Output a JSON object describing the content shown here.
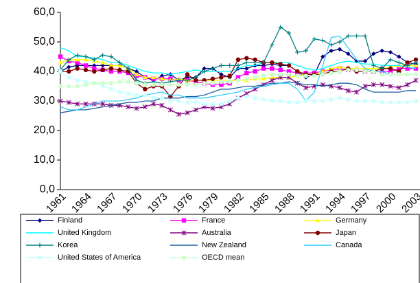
{
  "chart_data": {
    "type": "line",
    "categories": [
      "1961",
      null,
      null,
      "1964",
      null,
      null,
      "1967",
      null,
      null,
      "1970",
      null,
      null,
      "1973",
      null,
      null,
      "1976",
      null,
      null,
      "1979",
      null,
      null,
      "1982",
      null,
      null,
      "1985",
      null,
      null,
      "1988",
      null,
      null,
      "1991",
      null,
      null,
      "1994",
      null,
      null,
      "1997",
      null,
      null,
      "2000",
      null,
      null,
      "2003"
    ],
    "ylim": [
      0,
      60
    ],
    "yticks": [
      {
        "value": 0,
        "label": "0,0"
      },
      {
        "value": 10,
        "label": "10,0"
      },
      {
        "value": 20,
        "label": "20,0"
      },
      {
        "value": 30,
        "label": "30,0"
      },
      {
        "value": 40,
        "label": "40,0"
      },
      {
        "value": 50,
        "label": "50,0"
      },
      {
        "value": 60,
        "label": "60,0"
      }
    ],
    "grid": false,
    "legend": "bottom",
    "series": [
      {
        "name": "Finland",
        "color": "#000080",
        "marker": "diamond",
        "values": [
          40,
          41.5,
          42,
          42,
          42,
          42,
          42,
          42,
          41,
          40,
          38,
          37,
          38.5,
          39,
          37,
          38,
          38,
          41,
          41,
          39,
          38,
          41,
          41,
          42,
          42,
          42.5,
          42,
          42,
          40,
          38,
          39,
          45,
          47,
          47.5,
          46,
          43.5,
          43.5,
          46,
          47,
          46.5,
          45,
          43,
          42.5
        ]
      },
      {
        "name": "France",
        "color": "#ff00ff",
        "marker": "square",
        "values": [
          45,
          43.5,
          43,
          42,
          41,
          40.5,
          40,
          40,
          39.5,
          38.5,
          38,
          37.5,
          37.5,
          37.5,
          37,
          37,
          36.5,
          36,
          35.5,
          35.5,
          36,
          38,
          39.5,
          40,
          41,
          41,
          40.5,
          40,
          39.5,
          39.5,
          39.5,
          40,
          40.5,
          41,
          40.5,
          40.5,
          40,
          40,
          40,
          40,
          41,
          41,
          41
        ]
      },
      {
        "name": "Germany",
        "color": "#ffff00",
        "marker": "triangle",
        "values": [
          43,
          44,
          44,
          44,
          43.5,
          43,
          42,
          42,
          41,
          39,
          38,
          38,
          37.5,
          37,
          37.5,
          37,
          37,
          37,
          37,
          37,
          37,
          37,
          37,
          37.5,
          37.5,
          38,
          38,
          38,
          38.5,
          39,
          39,
          40,
          41,
          41.5,
          41,
          41,
          41,
          41,
          41,
          41.5,
          42,
          42,
          42
        ]
      },
      {
        "name": "United Kingdom",
        "color": "#00ffff",
        "marker": "none",
        "values": [
          48,
          47,
          45,
          45,
          44.5,
          44,
          43,
          43,
          42,
          41,
          40,
          39.5,
          39.5,
          39,
          39.5,
          40,
          40.5,
          40,
          40,
          40,
          40,
          41,
          42,
          42,
          43,
          43,
          43,
          43,
          42,
          41,
          40.5,
          41,
          42,
          43,
          43.5,
          43,
          42.5,
          42.5,
          42,
          42,
          42,
          41.5,
          41
        ]
      },
      {
        "name": "Australia",
        "color": "#800080",
        "marker": "star",
        "values": [
          30,
          29.5,
          29,
          29,
          29,
          29,
          28.5,
          28.5,
          28,
          27.5,
          28,
          29,
          28.5,
          27,
          25.5,
          26,
          27,
          28,
          27.5,
          28,
          29,
          31,
          32.5,
          34,
          35.5,
          37,
          38,
          38,
          36,
          34.5,
          35,
          35.5,
          35,
          34.5,
          33.5,
          33,
          35,
          35.5,
          35.5,
          35,
          34.5,
          35.5,
          37
        ]
      },
      {
        "name": "Japan",
        "color": "#800000",
        "marker": "circle",
        "values": [
          40,
          40,
          41,
          40.5,
          40,
          40.5,
          41,
          40.5,
          40,
          36,
          34,
          35,
          35,
          31.5,
          35,
          39,
          37,
          37,
          37.5,
          38,
          38.5,
          44,
          44.5,
          44,
          43,
          43,
          42.5,
          42,
          40,
          39,
          39,
          39,
          40,
          40,
          41,
          40,
          40,
          40,
          41,
          41,
          40,
          43,
          44
        ]
      },
      {
        "name": "Korea",
        "color": "#008080",
        "marker": "plus",
        "values": [
          40.5,
          44,
          45.5,
          45,
          44,
          45.5,
          45,
          43,
          41,
          37,
          36,
          36.5,
          36,
          36.5,
          37,
          37,
          38,
          40,
          41,
          42,
          42,
          42,
          43,
          43,
          43,
          49,
          55,
          53,
          46.5,
          47,
          51,
          50.5,
          49,
          50,
          52,
          52,
          52,
          42,
          41,
          44,
          43,
          42,
          43
        ]
      },
      {
        "name": "New Zealand",
        "color": "#1f5fa0",
        "marker": "none",
        "values": [
          26,
          26.5,
          27,
          27,
          27.5,
          28,
          28.5,
          29,
          29.5,
          29.5,
          30,
          30,
          31,
          31,
          31,
          31.5,
          31.5,
          32,
          33,
          34,
          34,
          34.5,
          35,
          35,
          35.5,
          36,
          36,
          36.5,
          36,
          35.5,
          35.5,
          35,
          35.5,
          36,
          36,
          35.5,
          34,
          33,
          33,
          33,
          33,
          33.5,
          33.5
        ]
      },
      {
        "name": "Canada",
        "color": "#33ccff",
        "marker": "none",
        "values": [
          28,
          27,
          27,
          28,
          29,
          30,
          30,
          30,
          30.5,
          31,
          32,
          32.5,
          33,
          32,
          32,
          31,
          31,
          31,
          31.5,
          32,
          32.5,
          33,
          34,
          34.5,
          35,
          35.5,
          36,
          36,
          34,
          30,
          33,
          42,
          51.5,
          52,
          48,
          44,
          41,
          40,
          40,
          39,
          39,
          39,
          39
        ]
      },
      {
        "name": "United States of America",
        "color": "#ccffff",
        "marker": "circle",
        "values": [
          40,
          38,
          37,
          36.5,
          36,
          35,
          34,
          33,
          32.5,
          32,
          32,
          31,
          31,
          30,
          30,
          29.5,
          29.5,
          29,
          29,
          29,
          30,
          31,
          31.5,
          31,
          30.5,
          30,
          30,
          29.5,
          29.5,
          30,
          30,
          30,
          30.5,
          31,
          30.5,
          30,
          30,
          30,
          29.5,
          29.5,
          29.5,
          29.5,
          30
        ]
      },
      {
        "name": "OECD mean",
        "color": "#ccffcc",
        "marker": "circle",
        "values": [
          35,
          35,
          35,
          35.5,
          36,
          36,
          36,
          36.5,
          36.5,
          36,
          35.5,
          35.5,
          35.5,
          35.5,
          35.5,
          35.5,
          35.5,
          36,
          36,
          36.5,
          36.5,
          37,
          37.5,
          38,
          38.5,
          39,
          39,
          39,
          38.5,
          38.5,
          38.5,
          39,
          39.5,
          40,
          40.5,
          40.5,
          40,
          40,
          39,
          39,
          39,
          39,
          39
        ]
      }
    ]
  }
}
